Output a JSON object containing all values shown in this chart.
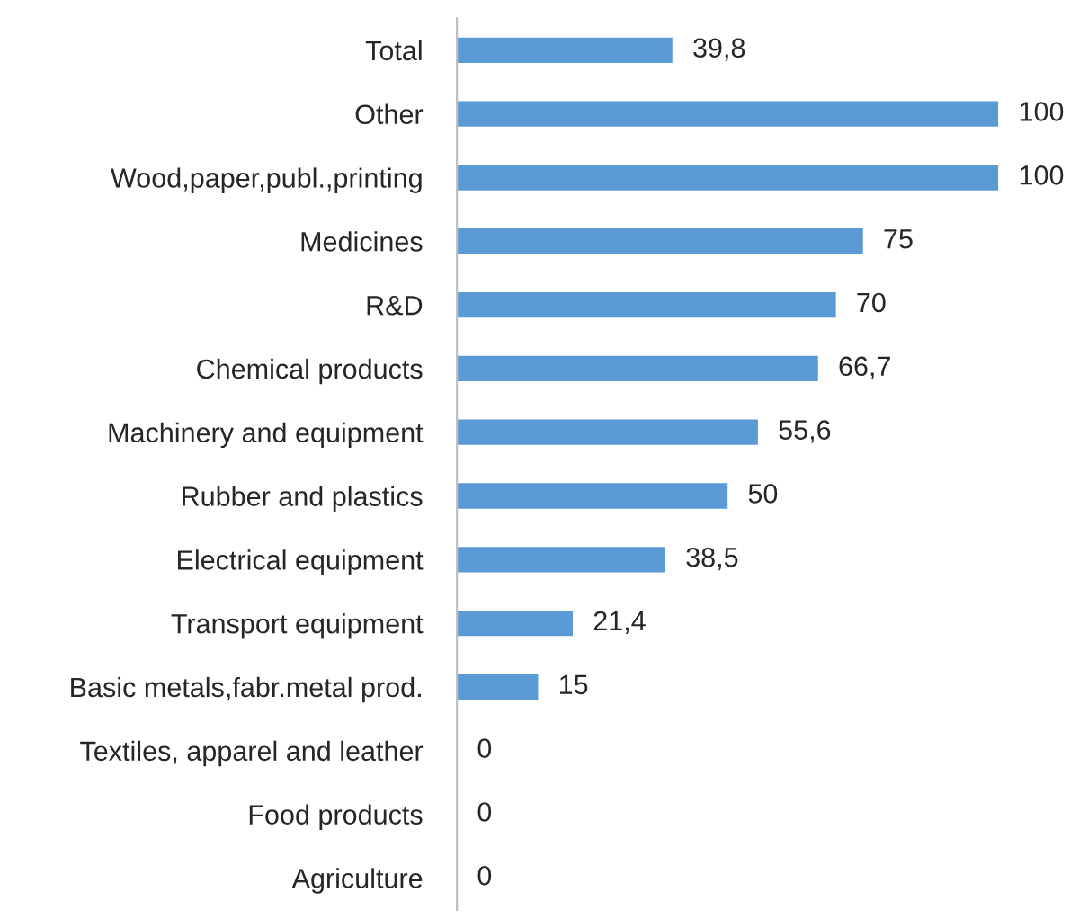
{
  "chart_data": {
    "type": "bar",
    "orientation": "horizontal",
    "categories": [
      "Total",
      "Other",
      "Wood,paper,publ.,printing",
      "Medicines",
      "R&D",
      "Chemical products",
      "Machinery and equipment",
      "Rubber and plastics",
      "Electrical equipment",
      "Transport equipment",
      "Basic metals,fabr.metal prod.",
      "Textiles, apparel and leather",
      "Food products",
      "Agriculture"
    ],
    "values": [
      39.8,
      100,
      100,
      75,
      70,
      66.7,
      55.6,
      50,
      38.5,
      21.4,
      15,
      0,
      0,
      0
    ],
    "value_labels": [
      "39,8",
      "100",
      "100",
      "75",
      "70",
      "66,7",
      "55,6",
      "50",
      "38,5",
      "21,4",
      "15",
      "0",
      "0",
      "0"
    ],
    "color": "#5b9bd5",
    "grid": false,
    "legend": false,
    "tick_labels": "y"
  }
}
